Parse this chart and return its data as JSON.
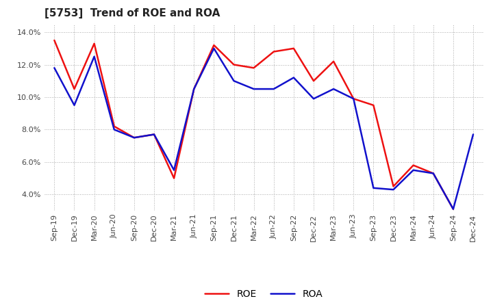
{
  "title": "[5753]  Trend of ROE and ROA",
  "labels": [
    "Sep-19",
    "Dec-19",
    "Mar-20",
    "Jun-20",
    "Sep-20",
    "Dec-20",
    "Mar-21",
    "Jun-21",
    "Sep-21",
    "Dec-21",
    "Mar-22",
    "Jun-22",
    "Sep-22",
    "Dec-22",
    "Mar-23",
    "Jun-23",
    "Sep-23",
    "Dec-23",
    "Mar-24",
    "Jun-24",
    "Sep-24",
    "Dec-24"
  ],
  "ROE": [
    13.5,
    10.5,
    13.3,
    8.2,
    7.5,
    7.7,
    5.0,
    10.5,
    13.2,
    12.0,
    11.8,
    12.8,
    13.0,
    11.0,
    12.2,
    9.9,
    9.5,
    4.5,
    5.8,
    5.3,
    3.1,
    null
  ],
  "ROA": [
    11.8,
    9.5,
    12.5,
    8.0,
    7.5,
    7.7,
    5.5,
    10.5,
    13.0,
    11.0,
    10.5,
    10.5,
    11.2,
    9.9,
    10.5,
    9.9,
    4.4,
    4.3,
    5.5,
    5.3,
    3.1,
    7.7
  ],
  "roe_color": "#EE1111",
  "roa_color": "#1111CC",
  "bg_color": "#FFFFFF",
  "plot_bg_color": "#FFFFFF",
  "grid_color": "#AAAAAA",
  "ylim": [
    3.0,
    14.5
  ],
  "yticks": [
    4.0,
    6.0,
    8.0,
    10.0,
    12.0,
    14.0
  ],
  "title_fontsize": 11,
  "legend_fontsize": 10,
  "tick_fontsize": 8,
  "linewidth": 1.8
}
